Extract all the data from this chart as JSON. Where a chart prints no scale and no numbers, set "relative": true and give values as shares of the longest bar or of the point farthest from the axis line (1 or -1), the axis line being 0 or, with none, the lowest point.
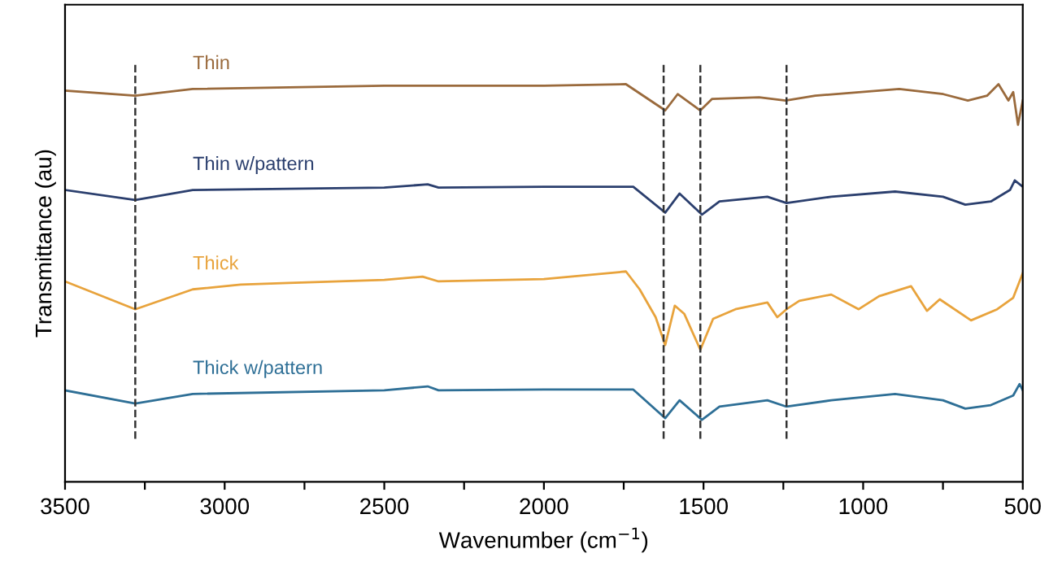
{
  "chart_data": {
    "type": "line",
    "relative": true,
    "xlabel": "Wavenumber (cm$^{−1}$)",
    "ylabel": "Transmittance (au)",
    "xlim": [
      3500,
      500
    ],
    "xticks": [
      3500,
      {
        "value": 3250,
        "label": null
      },
      3000,
      {
        "value": 2750,
        "label": null
      },
      2500,
      {
        "value": 2250,
        "label": null
      },
      2000,
      {
        "value": 1750,
        "label": null
      },
      1500,
      {
        "value": 1250,
        "label": null
      },
      1000,
      {
        "value": 750,
        "label": null
      },
      500
    ],
    "grid": false,
    "legend": false,
    "marker": "none",
    "line_style": "solid",
    "ref_lines": [
      {
        "axis": "x",
        "value": 3280,
        "color": "#333333",
        "line_style": "dashed"
      },
      {
        "axis": "x",
        "value": 1625,
        "color": "#333333",
        "line_style": "dashed"
      },
      {
        "axis": "x",
        "value": 1510,
        "color": "#333333",
        "line_style": "dashed"
      },
      {
        "axis": "x",
        "value": 1240,
        "color": "#333333",
        "line_style": "dashed"
      }
    ],
    "series": [
      {
        "name": "Thin",
        "color": "#9a6a3c",
        "x": [
          3500,
          3280,
          3100,
          2500,
          2000,
          1743,
          1620,
          1581,
          1510,
          1473,
          1326,
          1243,
          1150,
          887,
          749,
          672,
          612,
          576,
          545,
          530,
          515,
          500
        ],
        "values": [
          0.984,
          0.971,
          0.988,
          0.996,
          0.996,
          1.0,
          0.934,
          0.975,
          0.934,
          0.963,
          0.967,
          0.959,
          0.971,
          0.988,
          0.975,
          0.959,
          0.971,
          1.0,
          0.959,
          0.98,
          0.898,
          0.959
        ]
      },
      {
        "name": "Thin w/pattern",
        "color": "#2b3f6e",
        "x": [
          3500,
          3280,
          3100,
          2500,
          2364,
          2330,
          2000,
          1720,
          1620,
          1575,
          1505,
          1450,
          1300,
          1240,
          1100,
          900,
          750,
          680,
          600,
          540,
          525,
          500
        ],
        "values": [
          0.734,
          0.709,
          0.734,
          0.74,
          0.748,
          0.74,
          0.742,
          0.742,
          0.677,
          0.725,
          0.672,
          0.705,
          0.717,
          0.701,
          0.717,
          0.73,
          0.717,
          0.697,
          0.705,
          0.734,
          0.758,
          0.742
        ]
      },
      {
        "name": "Thick",
        "color": "#e8a33c",
        "x": [
          3500,
          3280,
          3100,
          2950,
          2800,
          2500,
          2380,
          2330,
          2000,
          1743,
          1700,
          1650,
          1620,
          1590,
          1560,
          1510,
          1470,
          1400,
          1300,
          1269,
          1240,
          1200,
          1100,
          1014,
          950,
          850,
          800,
          760,
          662,
          580,
          530,
          500
        ],
        "values": [
          0.504,
          0.434,
          0.484,
          0.496,
          0.5,
          0.508,
          0.516,
          0.504,
          0.51,
          0.529,
          0.484,
          0.414,
          0.344,
          0.443,
          0.422,
          0.332,
          0.41,
          0.434,
          0.451,
          0.414,
          0.434,
          0.455,
          0.471,
          0.434,
          0.467,
          0.492,
          0.43,
          0.459,
          0.406,
          0.434,
          0.463,
          0.525
        ]
      },
      {
        "name": "Thick w/pattern",
        "color": "#2e6f96",
        "x": [
          3500,
          3280,
          3100,
          2500,
          2364,
          2330,
          2000,
          1720,
          1620,
          1575,
          1505,
          1450,
          1300,
          1240,
          1100,
          900,
          750,
          680,
          600,
          530,
          510,
          500
        ],
        "values": [
          0.23,
          0.197,
          0.221,
          0.23,
          0.24,
          0.23,
          0.232,
          0.232,
          0.16,
          0.205,
          0.156,
          0.189,
          0.205,
          0.189,
          0.205,
          0.221,
          0.205,
          0.184,
          0.193,
          0.217,
          0.246,
          0.23
        ]
      }
    ]
  }
}
